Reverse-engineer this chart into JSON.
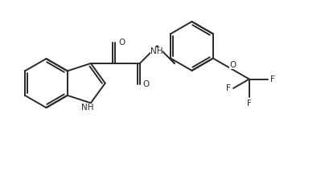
{
  "bg_color": "#ffffff",
  "line_color": "#2a2a2a",
  "line_width": 1.4,
  "font_size": 7.5,
  "figsize": [
    4.09,
    2.18
  ],
  "dpi": 100,
  "xlim": [
    0,
    10.5
  ],
  "ylim": [
    -0.5,
    5.5
  ]
}
